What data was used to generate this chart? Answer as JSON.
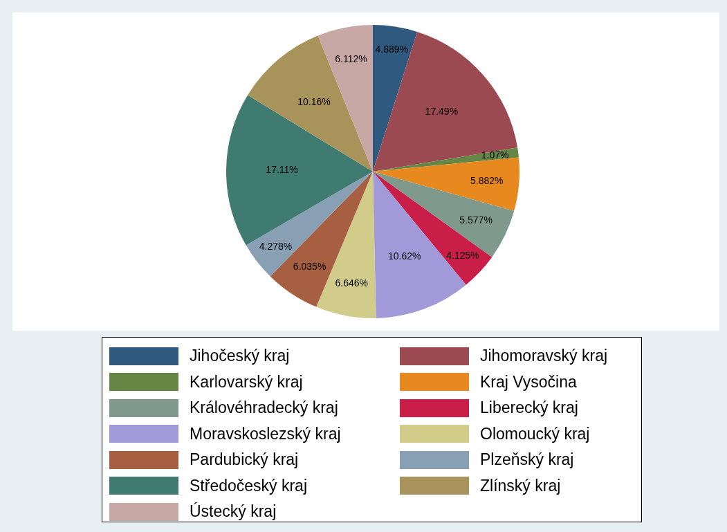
{
  "chart_data": {
    "type": "pie",
    "categories": [
      "Jihočeský kraj",
      "Jihomoravský kraj",
      "Karlovarský kraj",
      "Kraj Vysočina",
      "Královéhradecký kraj",
      "Liberecký kraj",
      "Moravskoslezský kraj",
      "Olomoucký kraj",
      "Pardubický kraj",
      "Plzeňský kraj",
      "Středočeský kraj",
      "Zlínský kraj",
      "Ústecký kraj"
    ],
    "values": [
      4.889,
      17.49,
      1.07,
      5.882,
      5.577,
      4.125,
      10.62,
      6.646,
      6.035,
      4.278,
      17.11,
      10.16,
      6.112
    ],
    "value_labels": [
      "4.889%",
      "17.49%",
      "1.07%",
      "5.882%",
      "5.577%",
      "4.125%",
      "10.62%",
      "6.646%",
      "6.035%",
      "4.278%",
      "17.11%",
      "10.16%",
      "6.112%"
    ],
    "colors": [
      "#30597f",
      "#9c4a51",
      "#658645",
      "#e8891f",
      "#7f9a8c",
      "#c81e48",
      "#a29ad8",
      "#d2cc8b",
      "#a65f40",
      "#899fb4",
      "#407b72",
      "#a8945a",
      "#c8a8a5"
    ],
    "legend": "bottom"
  }
}
